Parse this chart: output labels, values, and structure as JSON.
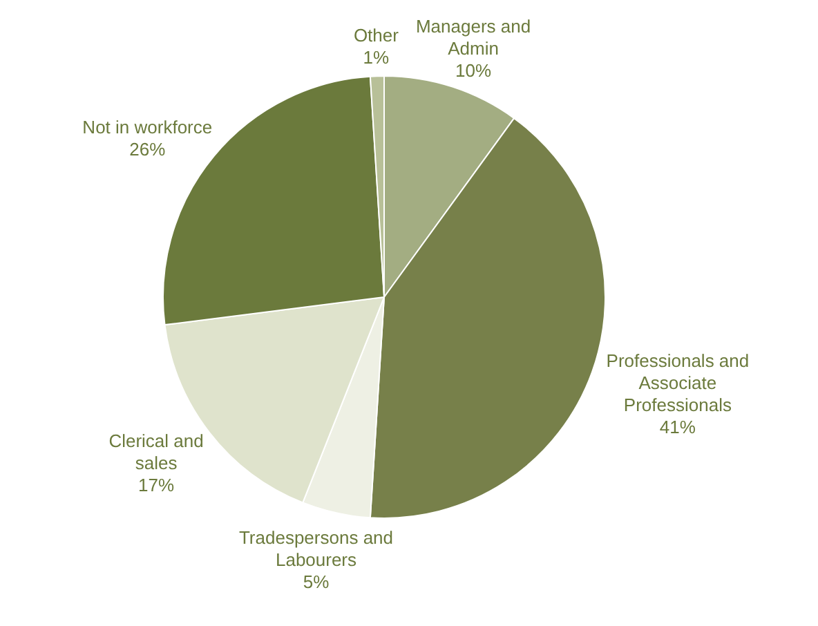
{
  "chart_data": {
    "type": "pie",
    "categories": [
      "Managers and Admin",
      "Professionals and Associate Professionals",
      "Tradespersons and Labourers",
      "Clerical and sales",
      "Not in workforce",
      "Other"
    ],
    "values": [
      10,
      41,
      5,
      17,
      26,
      1
    ],
    "colors": [
      "#a3ad82",
      "#77804a",
      "#eef0e4",
      "#dfe3cc",
      "#6b7a3c",
      "#b8c098"
    ],
    "value_labels": [
      "10%",
      "41%",
      "5%",
      "17%",
      "26%",
      "1%"
    ]
  }
}
